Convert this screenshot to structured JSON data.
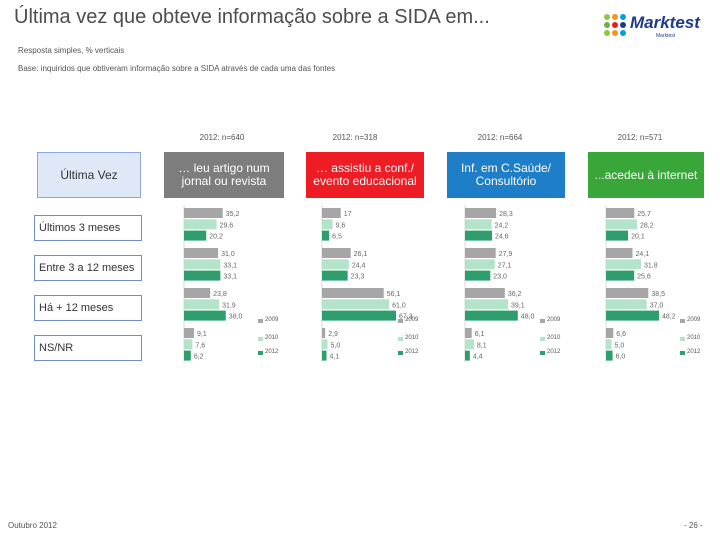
{
  "page": {
    "title": "Última vez que obteve informação sobre a SIDA em...",
    "subtitle": "Resposta simples, % verticais",
    "base": "Base: inquiridos que obtiveram informação sobre a SIDA através de cada uma das fontes",
    "footer_left": "Outubro 2012",
    "footer_right": "- 26 -"
  },
  "logo": {
    "name": "Marktest",
    "tagline": "Marktest",
    "dot_colors": [
      "#8cc63f",
      "#f7941d",
      "#00a0e3",
      "#6cb33f",
      "#e2231a",
      "#1f3a8a"
    ]
  },
  "row_header": "Última Vez",
  "row_labels": [
    "Últimos 3 meses",
    "Entre 3 a 12 meses",
    "Há + 12 meses",
    "NS/NR"
  ],
  "colors": {
    "2009": "#a6a6a6",
    "2010": "#b3e3c9",
    "2012": "#2e9e6e"
  },
  "chart_data": {
    "type": "bar",
    "orientation": "horizontal",
    "categories": [
      "Últimos 3 meses",
      "Entre 3 a 12 meses",
      "Há + 12 meses",
      "NS/NR"
    ],
    "series_names": [
      "2009",
      "2010",
      "2012"
    ],
    "xlim": [
      0,
      100
    ],
    "panels": [
      {
        "title": "… leu artigo num jornal ou revista",
        "color": "#7d7d7d",
        "n_label": "2012: n=640",
        "series": [
          {
            "name": "2009",
            "values": [
              35.2,
              31.0,
              23.8,
              9.1
            ]
          },
          {
            "name": "2010",
            "values": [
              29.6,
              33.1,
              31.9,
              7.6
            ]
          },
          {
            "name": "2012",
            "values": [
              20.2,
              33.1,
              38.0,
              6.2
            ]
          }
        ]
      },
      {
        "title": "… assistiu a conf./ evento educacional",
        "color": "#ee1c24",
        "n_label": "2012: n=318",
        "series": [
          {
            "name": "2009",
            "values": [
              17,
              26.1,
              56.1,
              2.9
            ]
          },
          {
            "name": "2010",
            "values": [
              9.6,
              24.4,
              61.0,
              5.0
            ]
          },
          {
            "name": "2012",
            "values": [
              6.5,
              23.3,
              67.3,
              4.1
            ]
          }
        ]
      },
      {
        "title": "Inf. em C.Saúde/ Consultório",
        "color": "#1f7ec8",
        "n_label": "2012: n=664",
        "series": [
          {
            "name": "2009",
            "values": [
              28.3,
              27.9,
              36.2,
              6.1
            ]
          },
          {
            "name": "2010",
            "values": [
              24.2,
              27.1,
              39.1,
              8.1
            ]
          },
          {
            "name": "2012",
            "values": [
              24.6,
              23.0,
              48.0,
              4.4
            ]
          }
        ]
      },
      {
        "title": "...acedeu à internet",
        "color": "#38a638",
        "n_label": "2012: n=571",
        "series": [
          {
            "name": "2009",
            "values": [
              25.7,
              24.1,
              38.5,
              6.6
            ]
          },
          {
            "name": "2010",
            "values": [
              28.2,
              31.8,
              37.0,
              5.0
            ]
          },
          {
            "name": "2012",
            "values": [
              20.1,
              25.6,
              48.2,
              6.0
            ]
          }
        ]
      }
    ],
    "value_labels": [
      [
        [
          "35,2",
          "29,6",
          "20,2"
        ],
        [
          "31,0",
          "33,1",
          "33,1"
        ],
        [
          "23,8",
          "31,9",
          "38,0"
        ],
        [
          "9,1",
          "7,6",
          "6,2"
        ]
      ],
      [
        [
          "17",
          "9,6",
          "6,5"
        ],
        [
          "26,1",
          "24,4",
          "23,3"
        ],
        [
          "56,1",
          "61,0",
          "67,3"
        ],
        [
          "2,9",
          "5,0",
          "4,1"
        ]
      ],
      [
        [
          "28,3",
          "24,2",
          "24,6"
        ],
        [
          "27,9",
          "27,1",
          "23,0"
        ],
        [
          "36,2",
          "39,1",
          "48,0"
        ],
        [
          "6,1",
          "8,1",
          "4,4"
        ]
      ],
      [
        [
          "25,7",
          "28,2",
          "20,1"
        ],
        [
          "24,1",
          "31,8",
          "25,6"
        ],
        [
          "38,5",
          "37,0",
          "48,2"
        ],
        [
          "6,6",
          "5,0",
          "6,0"
        ]
      ]
    ]
  }
}
